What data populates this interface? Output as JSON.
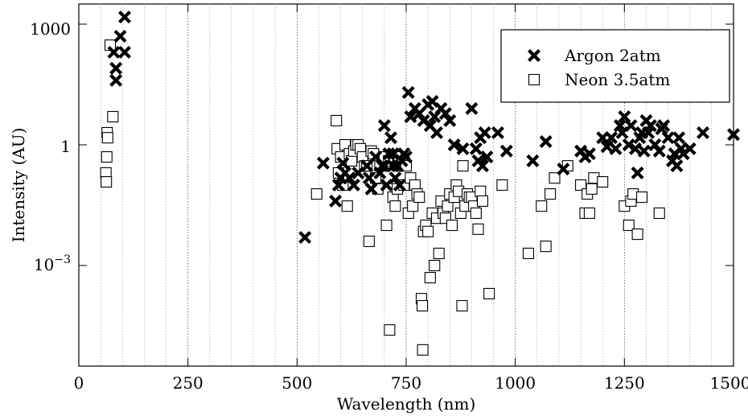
{
  "chart_data": {
    "type": "scatter",
    "xlabel": "Wavelength (nm)",
    "ylabel": "Intensity (AU)",
    "xlim": [
      0,
      1500
    ],
    "ylim_log10": [
      -5.5,
      3.5
    ],
    "yscale": "log",
    "x_ticks": [
      0,
      250,
      500,
      750,
      1000,
      1250,
      1500
    ],
    "x_tick_labels": [
      "0",
      "250",
      "500",
      "750",
      "1000",
      "1250",
      "1500"
    ],
    "y_ticks_log10": [
      3,
      0,
      -3
    ],
    "y_tick_labels": [
      "1000",
      "1",
      "10^-3"
    ],
    "x_minor_grid_step": 50,
    "grid": "vertical dotted lines",
    "legend_position": "top-right",
    "series": [
      {
        "name": "Argon 2atm",
        "marker": "filled-x",
        "color": "#000000",
        "points": [
          [
            80,
            200
          ],
          [
            85,
            80
          ],
          [
            85,
            40
          ],
          [
            95,
            500
          ],
          [
            105,
            1500
          ],
          [
            105,
            200
          ],
          [
            518,
            0.005
          ],
          [
            560,
            0.35
          ],
          [
            588,
            0.04
          ],
          [
            595,
            0.1
          ],
          [
            600,
            0.15
          ],
          [
            605,
            0.35
          ],
          [
            610,
            0.2
          ],
          [
            620,
            0.15
          ],
          [
            630,
            0.1
          ],
          [
            640,
            0.2
          ],
          [
            660,
            0.3
          ],
          [
            665,
            0.15
          ],
          [
            670,
            0.08
          ],
          [
            680,
            0.5
          ],
          [
            690,
            0.2
          ],
          [
            695,
            0.3
          ],
          [
            700,
            3
          ],
          [
            700,
            0.3
          ],
          [
            705,
            0.1
          ],
          [
            710,
            0.6
          ],
          [
            715,
            1.5
          ],
          [
            720,
            0.6
          ],
          [
            720,
            0.3
          ],
          [
            725,
            0.15
          ],
          [
            730,
            0.3
          ],
          [
            735,
            0.1
          ],
          [
            740,
            0.4
          ],
          [
            745,
            0.6
          ],
          [
            750,
            0.5
          ],
          [
            755,
            20
          ],
          [
            760,
            5
          ],
          [
            770,
            8
          ],
          [
            780,
            6
          ],
          [
            790,
            4
          ],
          [
            800,
            10
          ],
          [
            805,
            3
          ],
          [
            810,
            12
          ],
          [
            815,
            5
          ],
          [
            820,
            2
          ],
          [
            830,
            8
          ],
          [
            840,
            6
          ],
          [
            850,
            4
          ],
          [
            860,
            1
          ],
          [
            880,
            0.8
          ],
          [
            900,
            8
          ],
          [
            910,
            0.8
          ],
          [
            915,
            0.4
          ],
          [
            920,
            1.5
          ],
          [
            925,
            0.3
          ],
          [
            930,
            2
          ],
          [
            935,
            0.5
          ],
          [
            960,
            2
          ],
          [
            980,
            0.7
          ],
          [
            1040,
            0.4
          ],
          [
            1070,
            1.2
          ],
          [
            1110,
            0.25
          ],
          [
            1150,
            0.7
          ],
          [
            1160,
            0.5
          ],
          [
            1170,
            0.6
          ],
          [
            1200,
            1.5
          ],
          [
            1210,
            0.9
          ],
          [
            1220,
            1.5
          ],
          [
            1230,
            0.8
          ],
          [
            1240,
            3
          ],
          [
            1245,
            2
          ],
          [
            1250,
            5
          ],
          [
            1260,
            1
          ],
          [
            1265,
            3
          ],
          [
            1275,
            0.8
          ],
          [
            1280,
            0.2
          ],
          [
            1285,
            1.5
          ],
          [
            1290,
            2
          ],
          [
            1295,
            0.7
          ],
          [
            1300,
            4
          ],
          [
            1305,
            2
          ],
          [
            1310,
            3
          ],
          [
            1320,
            1
          ],
          [
            1330,
            0.7
          ],
          [
            1335,
            2.5
          ],
          [
            1340,
            3
          ],
          [
            1350,
            1.5
          ],
          [
            1360,
            0.4
          ],
          [
            1365,
            0.6
          ],
          [
            1370,
            0.3
          ],
          [
            1375,
            1.5
          ],
          [
            1380,
            0.8
          ],
          [
            1385,
            0.6
          ],
          [
            1400,
            0.8
          ],
          [
            1430,
            2
          ],
          [
            1500,
            1.8
          ]
        ]
      },
      {
        "name": "Neon 3.5atm",
        "marker": "open-square",
        "color": "#000000",
        "points": [
          [
            62,
            0.2
          ],
          [
            63,
            0.12
          ],
          [
            64,
            0.5
          ],
          [
            65,
            2
          ],
          [
            66,
            1.5
          ],
          [
            72,
            300
          ],
          [
            78,
            5
          ],
          [
            545,
            0.06
          ],
          [
            590,
            4
          ],
          [
            592,
            0.8
          ],
          [
            595,
            0.2
          ],
          [
            600,
            0.5
          ],
          [
            605,
            0.1
          ],
          [
            610,
            1
          ],
          [
            615,
            0.03
          ],
          [
            620,
            0.6
          ],
          [
            625,
            0.4
          ],
          [
            630,
            0.7
          ],
          [
            635,
            1
          ],
          [
            640,
            1
          ],
          [
            645,
            0.8
          ],
          [
            650,
            0.5
          ],
          [
            655,
            0.3
          ],
          [
            660,
            0.3
          ],
          [
            665,
            0.004
          ],
          [
            670,
            0.7
          ],
          [
            675,
            0.6
          ],
          [
            680,
            0.15
          ],
          [
            685,
            0.08
          ],
          [
            690,
            0.3
          ],
          [
            700,
            0.5
          ],
          [
            705,
            0.01
          ],
          [
            710,
            0.4
          ],
          [
            712,
            2.5e-05
          ],
          [
            720,
            0.05
          ],
          [
            725,
            0.03
          ],
          [
            730,
            0.08
          ],
          [
            735,
            0.3
          ],
          [
            740,
            0.5
          ],
          [
            745,
            0.1
          ],
          [
            750,
            0.3
          ],
          [
            755,
            0.02
          ],
          [
            760,
            0.15
          ],
          [
            765,
            0.03
          ],
          [
            770,
            0.1
          ],
          [
            775,
            0.06
          ],
          [
            780,
            0.05
          ],
          [
            785,
            0.00015
          ],
          [
            787,
            0.0001
          ],
          [
            788,
            8e-06
          ],
          [
            790,
            0.007
          ],
          [
            795,
            0.01
          ],
          [
            800,
            0.007
          ],
          [
            805,
            0.0005
          ],
          [
            810,
            0.02
          ],
          [
            815,
            0.001
          ],
          [
            820,
            0.015
          ],
          [
            825,
            0.002
          ],
          [
            830,
            0.04
          ],
          [
            835,
            0.02
          ],
          [
            840,
            0.015
          ],
          [
            845,
            0.03
          ],
          [
            850,
            0.06
          ],
          [
            855,
            0.01
          ],
          [
            860,
            0.05
          ],
          [
            865,
            0.1
          ],
          [
            870,
            0.07
          ],
          [
            875,
            0.02
          ],
          [
            878,
            0.0001
          ],
          [
            880,
            0.3
          ],
          [
            885,
            0.03
          ],
          [
            890,
            0.06
          ],
          [
            895,
            0.05
          ],
          [
            900,
            0.05
          ],
          [
            905,
            0.03
          ],
          [
            910,
            0.02
          ],
          [
            915,
            0.008
          ],
          [
            920,
            0.07
          ],
          [
            925,
            0.04
          ],
          [
            940,
            0.0002
          ],
          [
            970,
            0.1
          ],
          [
            1030,
            0.002
          ],
          [
            1060,
            0.03
          ],
          [
            1070,
            0.003
          ],
          [
            1080,
            0.06
          ],
          [
            1090,
            0.15
          ],
          [
            1120,
            0.3
          ],
          [
            1150,
            0.1
          ],
          [
            1160,
            0.02
          ],
          [
            1165,
            0.06
          ],
          [
            1170,
            0.02
          ],
          [
            1175,
            0.08
          ],
          [
            1180,
            0.15
          ],
          [
            1200,
            0.12
          ],
          [
            1250,
            0.03
          ],
          [
            1260,
            0.01
          ],
          [
            1265,
            0.04
          ],
          [
            1270,
            0.06
          ],
          [
            1280,
            0.006
          ],
          [
            1290,
            0.05
          ],
          [
            1330,
            0.02
          ]
        ]
      }
    ]
  }
}
